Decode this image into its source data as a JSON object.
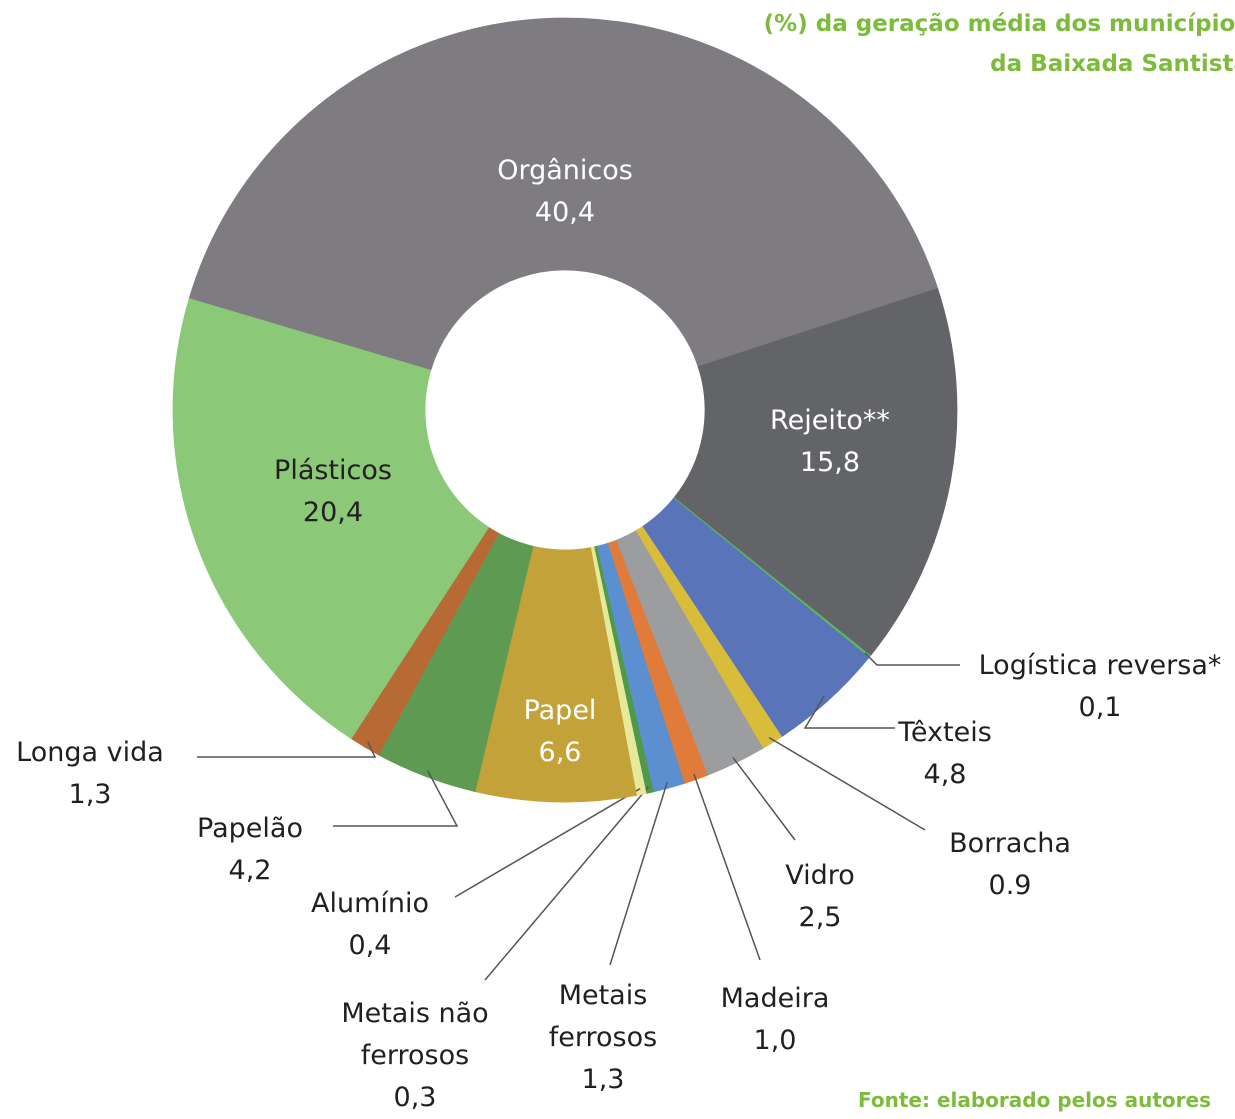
{
  "chart_data": {
    "type": "pie",
    "donut": true,
    "title": [
      "(%) da geração média dos municípios",
      "da Baixada Santista"
    ],
    "source": "Fonte: elaborado pelos autores",
    "categories": [
      "Orgânicos",
      "Rejeito**",
      "Logística  reversa*",
      "Têxteis",
      "Borracha",
      "Vidro",
      "Madeira",
      "Metais ferrosos",
      "Metais não ferrosos",
      "Alumínio",
      "Papel",
      "Papelão",
      "Longa vida",
      "Plásticos"
    ],
    "values": [
      40.4,
      15.8,
      0.1,
      4.8,
      0.9,
      2.5,
      1.0,
      1.3,
      0.3,
      0.4,
      6.6,
      4.2,
      1.3,
      20.4
    ],
    "value_labels": [
      "40,4",
      "15,8",
      "0,1",
      "4,8",
      "0.9",
      "2,5",
      "1,0",
      "1,3",
      "0,3",
      "0,4",
      "6,6",
      "4,2",
      "1,3",
      "20,4"
    ],
    "colors": [
      "#7e7c81",
      "#636467",
      "#5cb85c",
      "#5a74b9",
      "#d9bc3a",
      "#9b9d9f",
      "#e07b3a",
      "#5b8fd0",
      "#4f9a4a",
      "#e6e89a",
      "#c4a23a",
      "#5f9a52",
      "#b86a35",
      "#8bc878"
    ]
  }
}
